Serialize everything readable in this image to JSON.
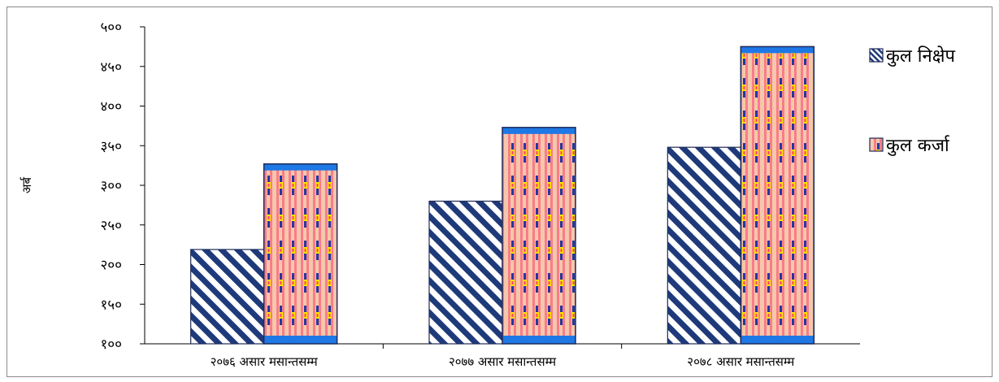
{
  "chart_data": {
    "type": "bar",
    "title": "",
    "xlabel": "",
    "ylabel": "अर्ब",
    "ylim": [
      100,
      500
    ],
    "yticks": [
      100,
      150,
      200,
      250,
      300,
      350,
      400,
      450,
      500
    ],
    "ytick_labels": [
      "१००",
      "१५०",
      "२००",
      "२५०",
      "३००",
      "३५०",
      "४००",
      "४५०",
      "५००"
    ],
    "categories": [
      "२०७६ असार मसान्तसम्म",
      "२०७७ असार मसान्तसम्म",
      "२०७८ असार मसान्तसम्म"
    ],
    "series": [
      {
        "name": "कुल निक्षेप",
        "values": [
          219,
          280,
          348
        ],
        "pattern": "diagonal-navy-stripes",
        "color": "#1f3a7a"
      },
      {
        "name": "कुल कर्जा",
        "values": [
          327,
          373,
          475
        ],
        "pattern": "pink-peach-blue-mosaic",
        "color": "#ff3d6e"
      }
    ],
    "legend": "right",
    "grid": false
  }
}
